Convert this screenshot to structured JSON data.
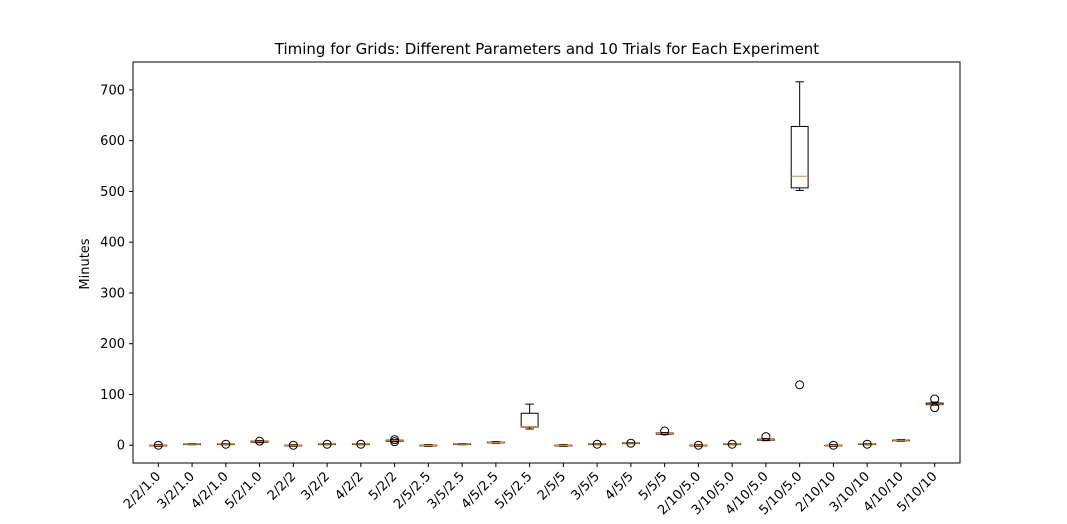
{
  "chart_data": {
    "type": "box",
    "title": "Timing for Grids: Different Parameters and 10 Trials for Each Experiment",
    "xlabel": "",
    "ylabel": "Minutes",
    "ylim": [
      -35,
      755
    ],
    "yticks": [
      0,
      100,
      200,
      300,
      400,
      500,
      600,
      700
    ],
    "grid": false,
    "box_color": "#000000",
    "median_color": "#ff7f0e",
    "categories": [
      "2/2/1.0",
      "3/2/1.0",
      "4/2/1.0",
      "5/2/1.0",
      "2/2/2",
      "3/2/2",
      "4/2/2",
      "5/2/2",
      "2/5/2.5",
      "3/5/2.5",
      "4/5/2.5",
      "5/5/2.5",
      "2/5/5",
      "3/5/5",
      "4/5/5",
      "5/5/5",
      "2/10/5.0",
      "3/10/5.0",
      "4/10/5.0",
      "5/10/5.0",
      "2/10/10",
      "3/10/10",
      "4/10/10",
      "5/10/10"
    ],
    "boxes": [
      {
        "whislo": -2,
        "q1": -1,
        "med": -0.5,
        "q3": 0,
        "whishi": 1,
        "fliers": [
          0
        ]
      },
      {
        "whislo": 1,
        "q1": 1.5,
        "med": 2,
        "q3": 2.5,
        "whishi": 3,
        "fliers": []
      },
      {
        "whislo": 1,
        "q1": 1.5,
        "med": 2,
        "q3": 2.5,
        "whishi": 3,
        "fliers": [
          2
        ]
      },
      {
        "whislo": 5,
        "q1": 6,
        "med": 7,
        "q3": 8,
        "whishi": 9,
        "fliers": [
          8
        ]
      },
      {
        "whislo": -2,
        "q1": -1,
        "med": -0.5,
        "q3": 0,
        "whishi": 1,
        "fliers": [
          0
        ]
      },
      {
        "whislo": 1,
        "q1": 1.5,
        "med": 2,
        "q3": 2.5,
        "whishi": 3,
        "fliers": [
          2
        ]
      },
      {
        "whislo": 1,
        "q1": 1.5,
        "med": 2,
        "q3": 2.5,
        "whishi": 3,
        "fliers": [
          2
        ]
      },
      {
        "whislo": 7,
        "q1": 8,
        "med": 9,
        "q3": 10,
        "whishi": 11,
        "fliers": [
          7,
          11
        ]
      },
      {
        "whislo": -2,
        "q1": -1,
        "med": -0.5,
        "q3": 0,
        "whishi": 1,
        "fliers": []
      },
      {
        "whislo": 1,
        "q1": 1.5,
        "med": 2,
        "q3": 2.5,
        "whishi": 3,
        "fliers": []
      },
      {
        "whislo": 4,
        "q1": 5,
        "med": 5.5,
        "q3": 6,
        "whishi": 7,
        "fliers": []
      },
      {
        "whislo": 32,
        "q1": 36,
        "med": 37,
        "q3": 63,
        "whishi": 81,
        "fliers": []
      },
      {
        "whislo": -2,
        "q1": -1,
        "med": -0.5,
        "q3": 0,
        "whishi": 1,
        "fliers": []
      },
      {
        "whislo": 1,
        "q1": 1.5,
        "med": 2,
        "q3": 2.5,
        "whishi": 3,
        "fliers": [
          2
        ]
      },
      {
        "whislo": 3,
        "q1": 3.5,
        "med": 4,
        "q3": 4.5,
        "whishi": 5,
        "fliers": [
          4
        ]
      },
      {
        "whislo": 21,
        "q1": 22,
        "med": 23,
        "q3": 24,
        "whishi": 25,
        "fliers": [
          28
        ]
      },
      {
        "whislo": -2,
        "q1": -1,
        "med": -0.5,
        "q3": 0,
        "whishi": 1,
        "fliers": [
          0
        ]
      },
      {
        "whislo": 1,
        "q1": 1.5,
        "med": 2,
        "q3": 2.5,
        "whishi": 3,
        "fliers": [
          2
        ]
      },
      {
        "whislo": 9,
        "q1": 10,
        "med": 11,
        "q3": 12,
        "whishi": 13,
        "fliers": [
          17
        ]
      },
      {
        "whislo": 502,
        "q1": 507,
        "med": 530,
        "q3": 628,
        "whishi": 716,
        "fliers": [
          119
        ]
      },
      {
        "whislo": -2,
        "q1": -1,
        "med": -0.5,
        "q3": 0,
        "whishi": 1,
        "fliers": [
          0
        ]
      },
      {
        "whislo": 1,
        "q1": 1.5,
        "med": 2,
        "q3": 2.5,
        "whishi": 3,
        "fliers": [
          2
        ]
      },
      {
        "whislo": 8,
        "q1": 9,
        "med": 9.5,
        "q3": 10,
        "whishi": 11,
        "fliers": []
      },
      {
        "whislo": 79,
        "q1": 80,
        "med": 81,
        "q3": 83,
        "whishi": 85,
        "fliers": [
          74,
          91
        ]
      }
    ]
  }
}
